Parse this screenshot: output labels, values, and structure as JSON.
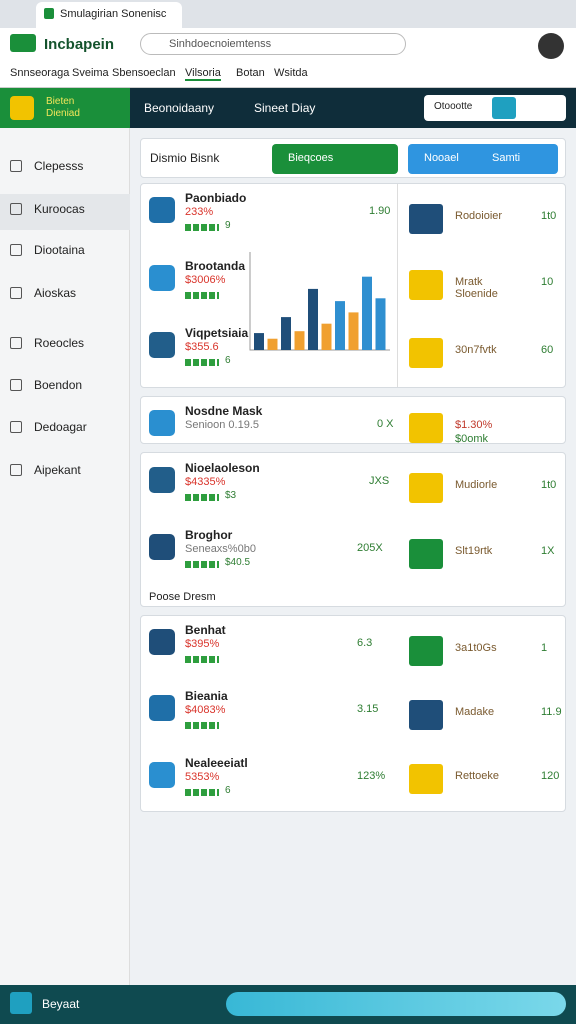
{
  "browser": {
    "tab_title": "Smulagirian Sonenisc"
  },
  "header": {
    "app_name": "Incbapein",
    "search": "Sinhdoecnoiemtenss",
    "nav": [
      "Snnseoraga",
      "Sveima",
      "Sbensoeclan",
      "Vilsoria",
      "Botan",
      "Wsitda"
    ]
  },
  "toolbar": {
    "brand": "Bieten Dieniad",
    "links": [
      "Beonoidaany",
      "Sineet Diay"
    ],
    "input": "Otoootte"
  },
  "sidebar": [
    "Clepesss",
    "Kuroocas",
    "Diootaina",
    "Aioskas",
    "Roeocles",
    "Boendon",
    "Dedoagar",
    "Aipekant"
  ],
  "main": {
    "title": "Dismio Bisnk",
    "buttons": [
      "Bieqcoes",
      "Nooael",
      "Samti"
    ]
  },
  "panels": [
    {
      "items": [
        {
          "name": "Paonbiado",
          "price": "233%",
          "note": "9",
          "value": "1.90"
        },
        {
          "name": "Brootanda",
          "price": "$3006%"
        },
        {
          "name": "Viqpetsiaia",
          "price": "$355.6",
          "note": "6"
        }
      ],
      "side": [
        {
          "name": "Rodoioier",
          "value": "1t0"
        },
        {
          "name": "Mratk Sloenide",
          "value": "10"
        },
        {
          "name": "30n7fvtk",
          "value": "60"
        }
      ],
      "chart": {
        "type": "bar",
        "values": [
          18,
          12,
          35,
          20,
          65,
          28,
          52,
          40,
          78,
          55
        ],
        "colors": [
          "#1f4e79",
          "#f0a030",
          "#1f4e79",
          "#f0a030",
          "#1f4e79",
          "#f0a030",
          "#2f8fd0",
          "#f0a030",
          "#2f8fd0",
          "#2f8fd0"
        ],
        "ylim": [
          0,
          100
        ]
      }
    },
    {
      "items": [
        {
          "name": "Nosdne Mask",
          "price": "Senioon 0.19.5",
          "value": "0 X"
        }
      ],
      "side": [
        {
          "name": "$1.30%",
          "value": "$0omk"
        }
      ]
    },
    {
      "items": [
        {
          "name": "Nioelaoleson",
          "price": "$4335%",
          "note": "$3",
          "value": "JXS"
        },
        {
          "name": "Broghor",
          "price": "Seneaxs%0b0",
          "note": "$40.5",
          "value": "205X"
        }
      ],
      "side": [
        {
          "name": "Mudiorle",
          "value": "1t0"
        },
        {
          "name": "Slt19rtk",
          "value": "1X"
        }
      ],
      "footer": "Poose Dresm"
    },
    {
      "items": [
        {
          "name": "Benhat",
          "price": "$395%",
          "value": "6.3"
        },
        {
          "name": "Bieania",
          "price": "$4083%",
          "value": "3.15"
        },
        {
          "name": "Nealeeeiatl",
          "price": "5353%",
          "note": "6",
          "value": "123%"
        }
      ],
      "side": [
        {
          "name": "3a1t0Gs",
          "value": "1"
        },
        {
          "name": "Madake",
          "value": "11.9"
        },
        {
          "name": "Rettoeke",
          "value": "120"
        }
      ]
    }
  ],
  "footer": {
    "label": "Beyaat"
  }
}
